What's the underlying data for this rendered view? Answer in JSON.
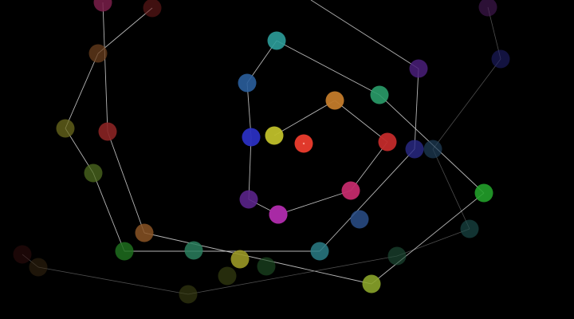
{
  "nodes": [
    {
      "id": "n01",
      "color": "#7a1f4a"
    },
    {
      "id": "n02",
      "color": "#6a1b1b"
    },
    {
      "id": "n03",
      "color": "#6b3f1e"
    },
    {
      "id": "n04",
      "color": "#6c6b1e"
    },
    {
      "id": "n05",
      "color": "#8a2424"
    },
    {
      "id": "n06",
      "color": "#4f6c20"
    },
    {
      "id": "n07",
      "color": "#8a5425"
    },
    {
      "id": "n08",
      "color": "#1e6e1e"
    },
    {
      "id": "n09",
      "color": "#3b0f10"
    },
    {
      "id": "n10",
      "color": "#3b2a12"
    },
    {
      "id": "n11",
      "color": "#3e4214"
    },
    {
      "id": "n12",
      "color": "#2a7f5e"
    },
    {
      "id": "n13",
      "color": "#9a9826"
    },
    {
      "id": "n14",
      "color": "#3f4a14"
    },
    {
      "id": "n15",
      "color": "#1f4f25"
    },
    {
      "id": "n16",
      "color": "#2a7d86"
    },
    {
      "id": "n17",
      "color": "#8aa42a"
    },
    {
      "id": "n18",
      "color": "#1e4f38"
    },
    {
      "id": "n19",
      "color": "#1b4f4d"
    },
    {
      "id": "n20",
      "color": "#2c9d9a"
    },
    {
      "id": "n21",
      "color": "#2a5e9c"
    },
    {
      "id": "n22",
      "color": "#2a2fc0"
    },
    {
      "id": "n23",
      "color": "#bfbf2a"
    },
    {
      "id": "n24",
      "color": "#e0392b"
    },
    {
      "id": "n25",
      "color": "#c27a2a"
    },
    {
      "id": "n26",
      "color": "#2a9d6a"
    },
    {
      "id": "n27",
      "color": "#c22a2a"
    },
    {
      "id": "n28",
      "color": "#5a248a"
    },
    {
      "id": "n29",
      "color": "#b52a8a"
    },
    {
      "id": "n30",
      "color": "#a82aa6"
    },
    {
      "id": "n31",
      "color": "#c22a6a"
    },
    {
      "id": "n32",
      "color": "#2a4f8a"
    },
    {
      "id": "n33",
      "color": "#4a1f7a"
    },
    {
      "id": "n34",
      "color": "#2a2a8a"
    },
    {
      "id": "n35",
      "color": "#1f3f5a"
    },
    {
      "id": "n36",
      "color": "#22a02a"
    },
    {
      "id": "n37",
      "color": "#4a1a5a"
    },
    {
      "id": "n38",
      "color": "#1f1f6a"
    }
  ],
  "edge_colors": {
    "bright": "#d6d6d6",
    "dim": "#6e6e6e"
  }
}
